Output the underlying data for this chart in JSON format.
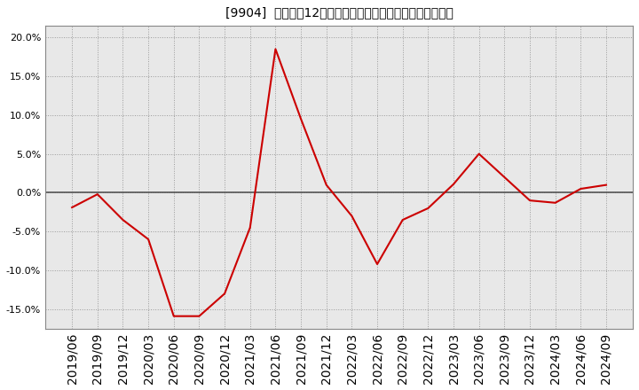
{
  "title": "[9904]  売上高の12か月移動合計の対前年同期増減率の推移",
  "line_color": "#cc0000",
  "background_color": "#ffffff",
  "plot_bg_color": "#e8e8e8",
  "grid_color": "#999999",
  "zero_line_color": "#555555",
  "border_color": "#888888",
  "dates": [
    "2019/06",
    "2019/09",
    "2019/12",
    "2020/03",
    "2020/06",
    "2020/09",
    "2020/12",
    "2021/03",
    "2021/06",
    "2021/09",
    "2021/12",
    "2022/03",
    "2022/06",
    "2022/09",
    "2022/12",
    "2023/03",
    "2023/06",
    "2023/09",
    "2023/12",
    "2024/03",
    "2024/06",
    "2024/09"
  ],
  "values": [
    -0.019,
    -0.002,
    -0.035,
    -0.06,
    -0.159,
    -0.159,
    -0.13,
    -0.045,
    0.185,
    0.095,
    0.01,
    -0.03,
    -0.092,
    -0.035,
    -0.02,
    0.011,
    0.05,
    0.02,
    -0.01,
    -0.013,
    0.005,
    0.01
  ],
  "ylim": [
    -0.175,
    0.215
  ],
  "yticks": [
    -0.15,
    -0.1,
    -0.05,
    0.0,
    0.05,
    0.1,
    0.15,
    0.2
  ],
  "title_fontsize": 11,
  "tick_fontsize": 8,
  "xtick_fontsize": 7
}
